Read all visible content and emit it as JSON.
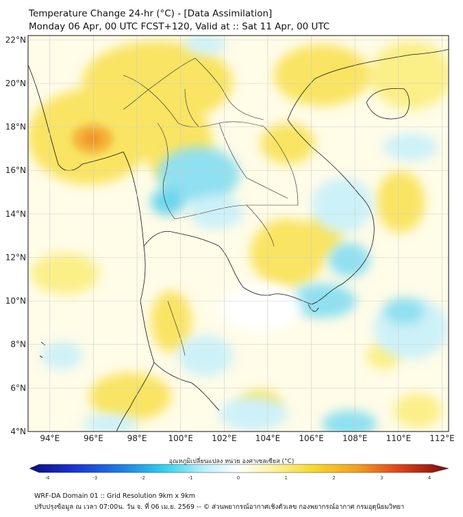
{
  "title": {
    "line1": "Temperature Change 24-hr (°C) - [Data Assimilation]",
    "line2": "Monday 06 Apr, 00 UTC FCST+120, Valid at :: Sat 11 Apr, 00 UTC"
  },
  "map": {
    "lat_labels": [
      "22°N",
      "20°N",
      "18°N",
      "16°N",
      "14°N",
      "12°N",
      "10°N",
      "8°N",
      "6°N",
      "4°N"
    ],
    "lon_labels": [
      "94°E",
      "96°E",
      "98°E",
      "100°E",
      "102°E",
      "104°E",
      "106°E",
      "108°E",
      "110°E",
      "112°E"
    ],
    "lat_range": [
      4,
      22.2
    ],
    "lon_range": [
      93,
      112.3
    ]
  },
  "colorbar": {
    "label": "อุณหภูมิเปลี่ยนแปลง หน่วย องศาเซลเซียส (°C)",
    "ticks": [
      "-4",
      "-3",
      "-2",
      "-1",
      "0",
      "1",
      "2",
      "3",
      "4"
    ],
    "range": [
      -4,
      4
    ]
  },
  "footer": {
    "line1": "WRF-DA Domain 01 :: Grid Resolution 9km x 9km",
    "line2": "ปรับปรุงข้อมูล ณ เวลา 07:00น. วัน จ. ที่ 06 เม.ย. 2569 -- © ส่วนพยากรณ์อากาศเชิงตัวเลข กองพยากรณ์อากาศ กรมอุตุนิยมวิทยา"
  },
  "colors": {
    "warm_light": "#fdf6b0",
    "warm_mid": "#f9e463",
    "warm_peak": "#f09a2c",
    "cool_light": "#cdf1f8",
    "cool_mid": "#8fe0f0",
    "neutral": "#ffffff"
  }
}
